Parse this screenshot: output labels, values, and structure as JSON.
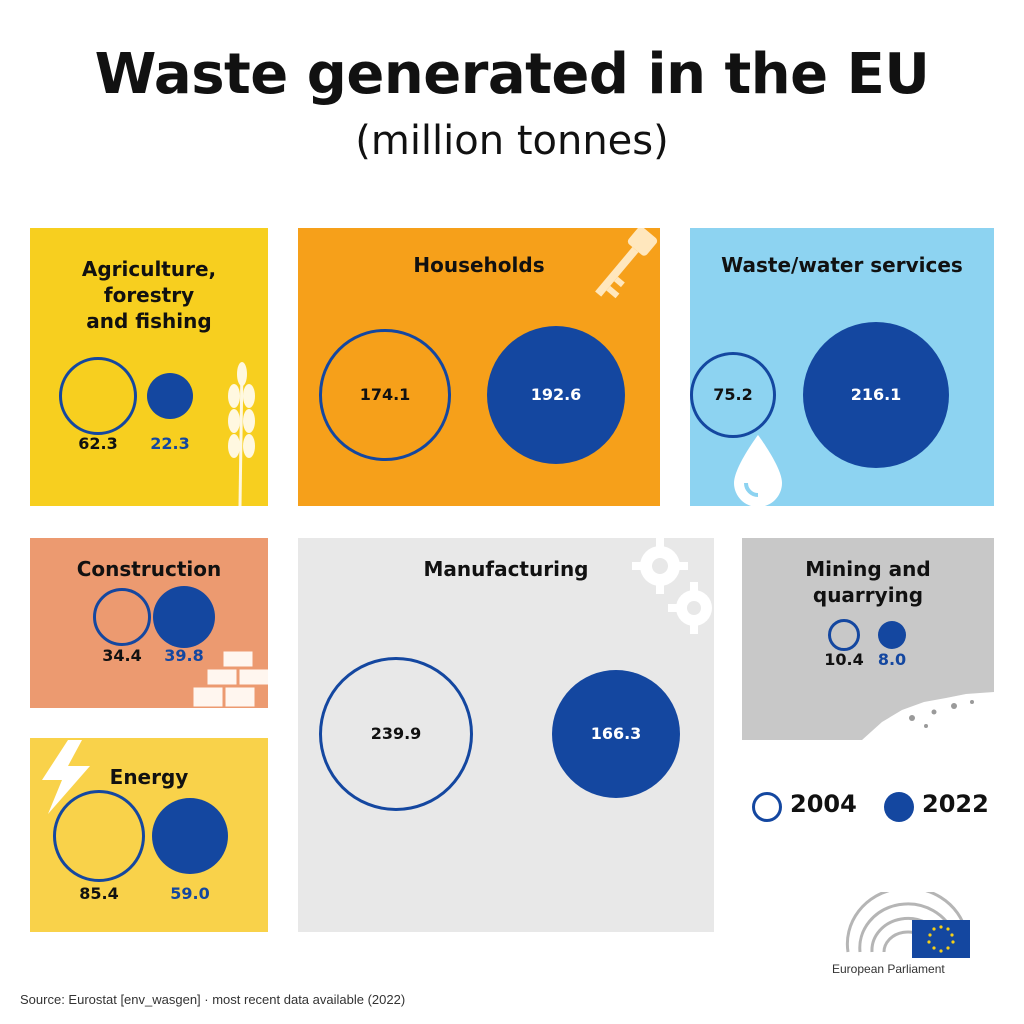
{
  "title": "Waste generated in the EU",
  "subtitle": "(million tonnes)",
  "colors": {
    "blue": "#1447a0",
    "agriculture_bg": "#f7cf1f",
    "households_bg": "#f6a01a",
    "waste_water_bg": "#8dd3f1",
    "construction_bg": "#ec9a70",
    "manufacturing_bg": "#e8e8e8",
    "mining_bg": "#c8c8c8",
    "energy_bg": "#f9d24a"
  },
  "chart_data": {
    "type": "bubble",
    "title": "Waste generated in the EU",
    "subtitle": "(million tonnes)",
    "series": [
      {
        "name": "2004"
      },
      {
        "name": "2022"
      }
    ],
    "categories": [
      {
        "name": "Agriculture, forestry and fishing",
        "v2004": "62.3",
        "v2022": "22.3",
        "icon": "wheat-icon"
      },
      {
        "name": "Households",
        "v2004": "174.1",
        "v2022": "192.6",
        "icon": "key-icon"
      },
      {
        "name": "Waste/water services",
        "v2004": "75.2",
        "v2022": "216.1",
        "icon": "water-drop-icon"
      },
      {
        "name": "Construction",
        "v2004": "34.4",
        "v2022": "39.8",
        "icon": "bricks-icon"
      },
      {
        "name": "Manufacturing",
        "v2004": "239.9",
        "v2022": "166.3",
        "icon": "gears-icon"
      },
      {
        "name": "Mining and quarrying",
        "v2004": "10.4",
        "v2022": "8.0",
        "icon": "rubble-icon"
      },
      {
        "name": "Energy",
        "v2004": "85.4",
        "v2022": "59.0",
        "icon": "lightning-icon"
      }
    ],
    "legend": {
      "y2004": "2004",
      "y2022": "2022",
      "placement": "bottom-right"
    }
  },
  "panels": {
    "agriculture": {
      "l1": "Agriculture,",
      "l2": "forestry",
      "l3": "and fishing",
      "v2004": "62.3",
      "v2022": "22.3"
    },
    "households": {
      "name": "Households",
      "v2004": "174.1",
      "v2022": "192.6"
    },
    "waste_water": {
      "name": "Waste/water services",
      "v2004": "75.2",
      "v2022": "216.1"
    },
    "construction": {
      "name": "Construction",
      "v2004": "34.4",
      "v2022": "39.8"
    },
    "manufacturing": {
      "name": "Manufacturing",
      "v2004": "239.9",
      "v2022": "166.3"
    },
    "mining": {
      "l1": "Mining and",
      "l2": "quarrying",
      "v2004": "10.4",
      "v2022": "8.0"
    },
    "energy": {
      "name": "Energy",
      "v2004": "85.4",
      "v2022": "59.0"
    }
  },
  "legend": {
    "y2004": "2004",
    "y2022": "2022"
  },
  "source": "Source: Eurostat [env_wasgen]  ·  most recent data available (2022)",
  "logo": {
    "label": "European Parliament",
    "icon": "ep-hemicycle-logo"
  }
}
